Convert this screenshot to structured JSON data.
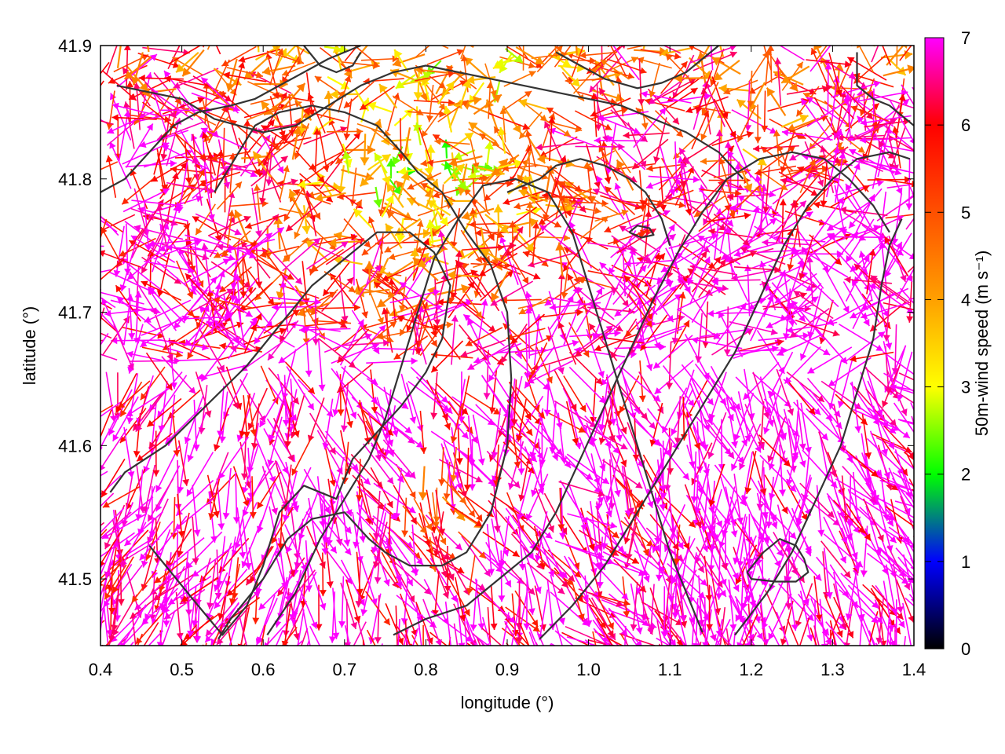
{
  "chart_data": {
    "type": "vector-field",
    "xlabel": "longitude (°)",
    "ylabel": "latitude (°)",
    "xlim": [
      0.4,
      1.4
    ],
    "ylim": [
      41.45,
      41.9
    ],
    "x_ticks": [
      0.4,
      0.5,
      0.6,
      0.7,
      0.8,
      0.9,
      1.0,
      1.1,
      1.2,
      1.3,
      1.4
    ],
    "x_tick_labels": [
      "0.4",
      "0.5",
      "0.6",
      "0.7",
      "0.8",
      "0.9",
      "1.0",
      "1.1",
      "1.2",
      "1.3",
      "1.4"
    ],
    "y_ticks": [
      41.5,
      41.6,
      41.7,
      41.8,
      41.9
    ],
    "y_tick_labels": [
      "41.5",
      "41.6",
      "41.7",
      "41.8",
      "41.9"
    ],
    "colorbar": {
      "label": "50m-wind speed (m s⁻¹)",
      "range": [
        0,
        7
      ],
      "ticks": [
        0,
        1,
        2,
        3,
        4,
        5,
        6,
        7
      ],
      "tick_labels": [
        "0",
        "1",
        "2",
        "3",
        "4",
        "5",
        "6",
        "7"
      ],
      "colormap": [
        {
          "value": 0,
          "color": "#000000"
        },
        {
          "value": 1,
          "color": "#0000ff"
        },
        {
          "value": 2,
          "color": "#00ff00"
        },
        {
          "value": 3,
          "color": "#ffff00"
        },
        {
          "value": 4,
          "color": "#ffa000"
        },
        {
          "value": 5,
          "color": "#ff5000"
        },
        {
          "value": 6,
          "color": "#ff0000"
        },
        {
          "value": 7,
          "color": "#ff00ff"
        }
      ]
    },
    "contour_color": "#333333",
    "contour_lines": [
      [
        [
          0.46,
          41.525
        ],
        [
          0.52,
          41.48
        ],
        [
          0.55,
          41.458
        ],
        [
          0.58,
          41.48
        ],
        [
          0.6,
          41.51
        ],
        [
          0.62,
          41.55
        ],
        [
          0.65,
          41.57
        ],
        [
          0.69,
          41.56
        ],
        [
          0.71,
          41.59
        ],
        [
          0.74,
          41.61
        ],
        [
          0.77,
          41.63
        ],
        [
          0.8,
          41.655
        ],
        [
          0.82,
          41.68
        ],
        [
          0.83,
          41.72
        ],
        [
          0.81,
          41.745
        ],
        [
          0.78,
          41.76
        ],
        [
          0.74,
          41.76
        ],
        [
          0.7,
          41.74
        ],
        [
          0.66,
          41.72
        ],
        [
          0.62,
          41.69
        ],
        [
          0.58,
          41.66
        ],
        [
          0.53,
          41.63
        ],
        [
          0.48,
          41.6
        ],
        [
          0.43,
          41.58
        ],
        [
          0.412,
          41.565
        ]
      ],
      [
        [
          0.545,
          41.455
        ],
        [
          0.56,
          41.47
        ],
        [
          0.6,
          41.5
        ],
        [
          0.63,
          41.53
        ],
        [
          0.66,
          41.545
        ],
        [
          0.7,
          41.55
        ],
        [
          0.73,
          41.53
        ],
        [
          0.75,
          41.52
        ],
        [
          0.78,
          41.51
        ],
        [
          0.82,
          41.51
        ],
        [
          0.85,
          41.52
        ],
        [
          0.88,
          41.55
        ],
        [
          0.9,
          41.6
        ],
        [
          0.905,
          41.65
        ],
        [
          0.9,
          41.7
        ],
        [
          0.88,
          41.735
        ],
        [
          0.85,
          41.76
        ],
        [
          0.82,
          41.79
        ],
        [
          0.79,
          41.805
        ],
        [
          0.77,
          41.82
        ],
        [
          0.74,
          41.84
        ],
        [
          0.7,
          41.85
        ],
        [
          0.66,
          41.855
        ],
        [
          0.62,
          41.85
        ],
        [
          0.59,
          41.84
        ],
        [
          0.56,
          41.81
        ],
        [
          0.54,
          41.79
        ]
      ],
      [
        [
          0.605,
          41.458
        ],
        [
          0.64,
          41.49
        ],
        [
          0.67,
          41.53
        ],
        [
          0.7,
          41.56
        ],
        [
          0.73,
          41.59
        ],
        [
          0.75,
          41.62
        ],
        [
          0.77,
          41.66
        ],
        [
          0.79,
          41.7
        ],
        [
          0.81,
          41.74
        ],
        [
          0.84,
          41.77
        ],
        [
          0.87,
          41.795
        ],
        [
          0.91,
          41.8
        ],
        [
          0.95,
          41.79
        ],
        [
          0.98,
          41.76
        ],
        [
          1.0,
          41.72
        ],
        [
          1.02,
          41.68
        ],
        [
          1.04,
          41.64
        ],
        [
          1.06,
          41.6
        ],
        [
          1.08,
          41.56
        ],
        [
          1.1,
          41.52
        ],
        [
          1.12,
          41.49
        ],
        [
          1.14,
          41.46
        ]
      ],
      [
        [
          0.76,
          41.458
        ],
        [
          0.8,
          41.47
        ],
        [
          0.85,
          41.48
        ],
        [
          0.89,
          41.5
        ],
        [
          0.93,
          41.52
        ],
        [
          0.96,
          41.55
        ],
        [
          0.99,
          41.59
        ],
        [
          1.02,
          41.63
        ],
        [
          1.05,
          41.67
        ],
        [
          1.08,
          41.71
        ],
        [
          1.11,
          41.745
        ],
        [
          1.14,
          41.775
        ],
        [
          1.17,
          41.8
        ],
        [
          1.21,
          41.815
        ],
        [
          1.25,
          41.82
        ],
        [
          1.29,
          41.815
        ],
        [
          1.32,
          41.8
        ],
        [
          1.35,
          41.78
        ],
        [
          1.37,
          41.76
        ]
      ],
      [
        [
          0.94,
          41.455
        ],
        [
          0.98,
          41.48
        ],
        [
          1.02,
          41.51
        ],
        [
          1.06,
          41.55
        ],
        [
          1.1,
          41.59
        ],
        [
          1.14,
          41.63
        ],
        [
          1.18,
          41.67
        ],
        [
          1.21,
          41.71
        ],
        [
          1.24,
          41.75
        ],
        [
          1.27,
          41.78
        ],
        [
          1.3,
          41.8
        ],
        [
          1.33,
          41.815
        ],
        [
          1.37,
          41.82
        ],
        [
          1.395,
          41.815
        ]
      ],
      [
        [
          1.18,
          41.458
        ],
        [
          1.22,
          41.49
        ],
        [
          1.25,
          41.52
        ],
        [
          1.28,
          41.56
        ],
        [
          1.31,
          41.6
        ],
        [
          1.33,
          41.64
        ],
        [
          1.35,
          41.68
        ],
        [
          1.36,
          41.72
        ],
        [
          1.37,
          41.75
        ],
        [
          1.385,
          41.77
        ]
      ],
      [
        [
          1.195,
          41.505
        ],
        [
          1.215,
          41.52
        ],
        [
          1.235,
          41.53
        ],
        [
          1.255,
          41.525
        ],
        [
          1.265,
          41.515
        ],
        [
          1.27,
          41.505
        ],
        [
          1.255,
          41.498
        ],
        [
          1.23,
          41.498
        ],
        [
          1.2,
          41.5
        ],
        [
          1.195,
          41.505
        ]
      ],
      [
        [
          0.42,
          41.87
        ],
        [
          0.46,
          41.865
        ],
        [
          0.5,
          41.86
        ],
        [
          0.54,
          41.845
        ],
        [
          0.57,
          41.84
        ],
        [
          0.6,
          41.835
        ],
        [
          0.64,
          41.84
        ],
        [
          0.68,
          41.855
        ],
        [
          0.72,
          41.87
        ],
        [
          0.76,
          41.88
        ],
        [
          0.8,
          41.885
        ],
        [
          0.84,
          41.88
        ],
        [
          0.88,
          41.875
        ],
        [
          0.92,
          41.87
        ],
        [
          0.96,
          41.865
        ],
        [
          1.0,
          41.86
        ],
        [
          1.04,
          41.855
        ],
        [
          1.08,
          41.845
        ],
        [
          1.12,
          41.835
        ],
        [
          1.16,
          41.82
        ],
        [
          1.19,
          41.8
        ]
      ],
      [
        [
          0.4,
          41.79
        ],
        [
          0.43,
          41.8
        ],
        [
          0.46,
          41.82
        ],
        [
          0.49,
          41.84
        ],
        [
          0.52,
          41.85
        ],
        [
          0.56,
          41.855
        ],
        [
          0.59,
          41.86
        ],
        [
          0.62,
          41.87
        ],
        [
          0.65,
          41.88
        ],
        [
          0.68,
          41.89
        ],
        [
          0.7,
          41.895
        ],
        [
          0.72,
          41.9
        ]
      ],
      [
        [
          0.65,
          41.9
        ],
        [
          0.67,
          41.885
        ],
        [
          0.69,
          41.88
        ],
        [
          0.71,
          41.885
        ],
        [
          0.72,
          41.895
        ]
      ],
      [
        [
          1.33,
          41.895
        ],
        [
          1.33,
          41.87
        ],
        [
          1.35,
          41.86
        ],
        [
          1.37,
          41.855
        ],
        [
          1.39,
          41.845
        ],
        [
          1.4,
          41.84
        ]
      ],
      [
        [
          0.96,
          41.895
        ],
        [
          0.99,
          41.885
        ],
        [
          1.02,
          41.875
        ],
        [
          1.06,
          41.868
        ],
        [
          1.09,
          41.872
        ],
        [
          1.12,
          41.88
        ],
        [
          1.14,
          41.89
        ],
        [
          1.16,
          41.9
        ]
      ],
      [
        [
          0.9,
          41.79
        ],
        [
          0.94,
          41.8
        ],
        [
          0.96,
          41.81
        ],
        [
          0.99,
          41.815
        ],
        [
          1.02,
          41.81
        ],
        [
          1.05,
          41.8
        ],
        [
          1.07,
          41.79
        ],
        [
          1.09,
          41.77
        ],
        [
          1.1,
          41.75
        ]
      ],
      [
        [
          1.05,
          41.76
        ],
        [
          1.06,
          41.765
        ],
        [
          1.075,
          41.763
        ],
        [
          1.08,
          41.758
        ],
        [
          1.065,
          41.756
        ],
        [
          1.05,
          41.76
        ]
      ]
    ]
  }
}
